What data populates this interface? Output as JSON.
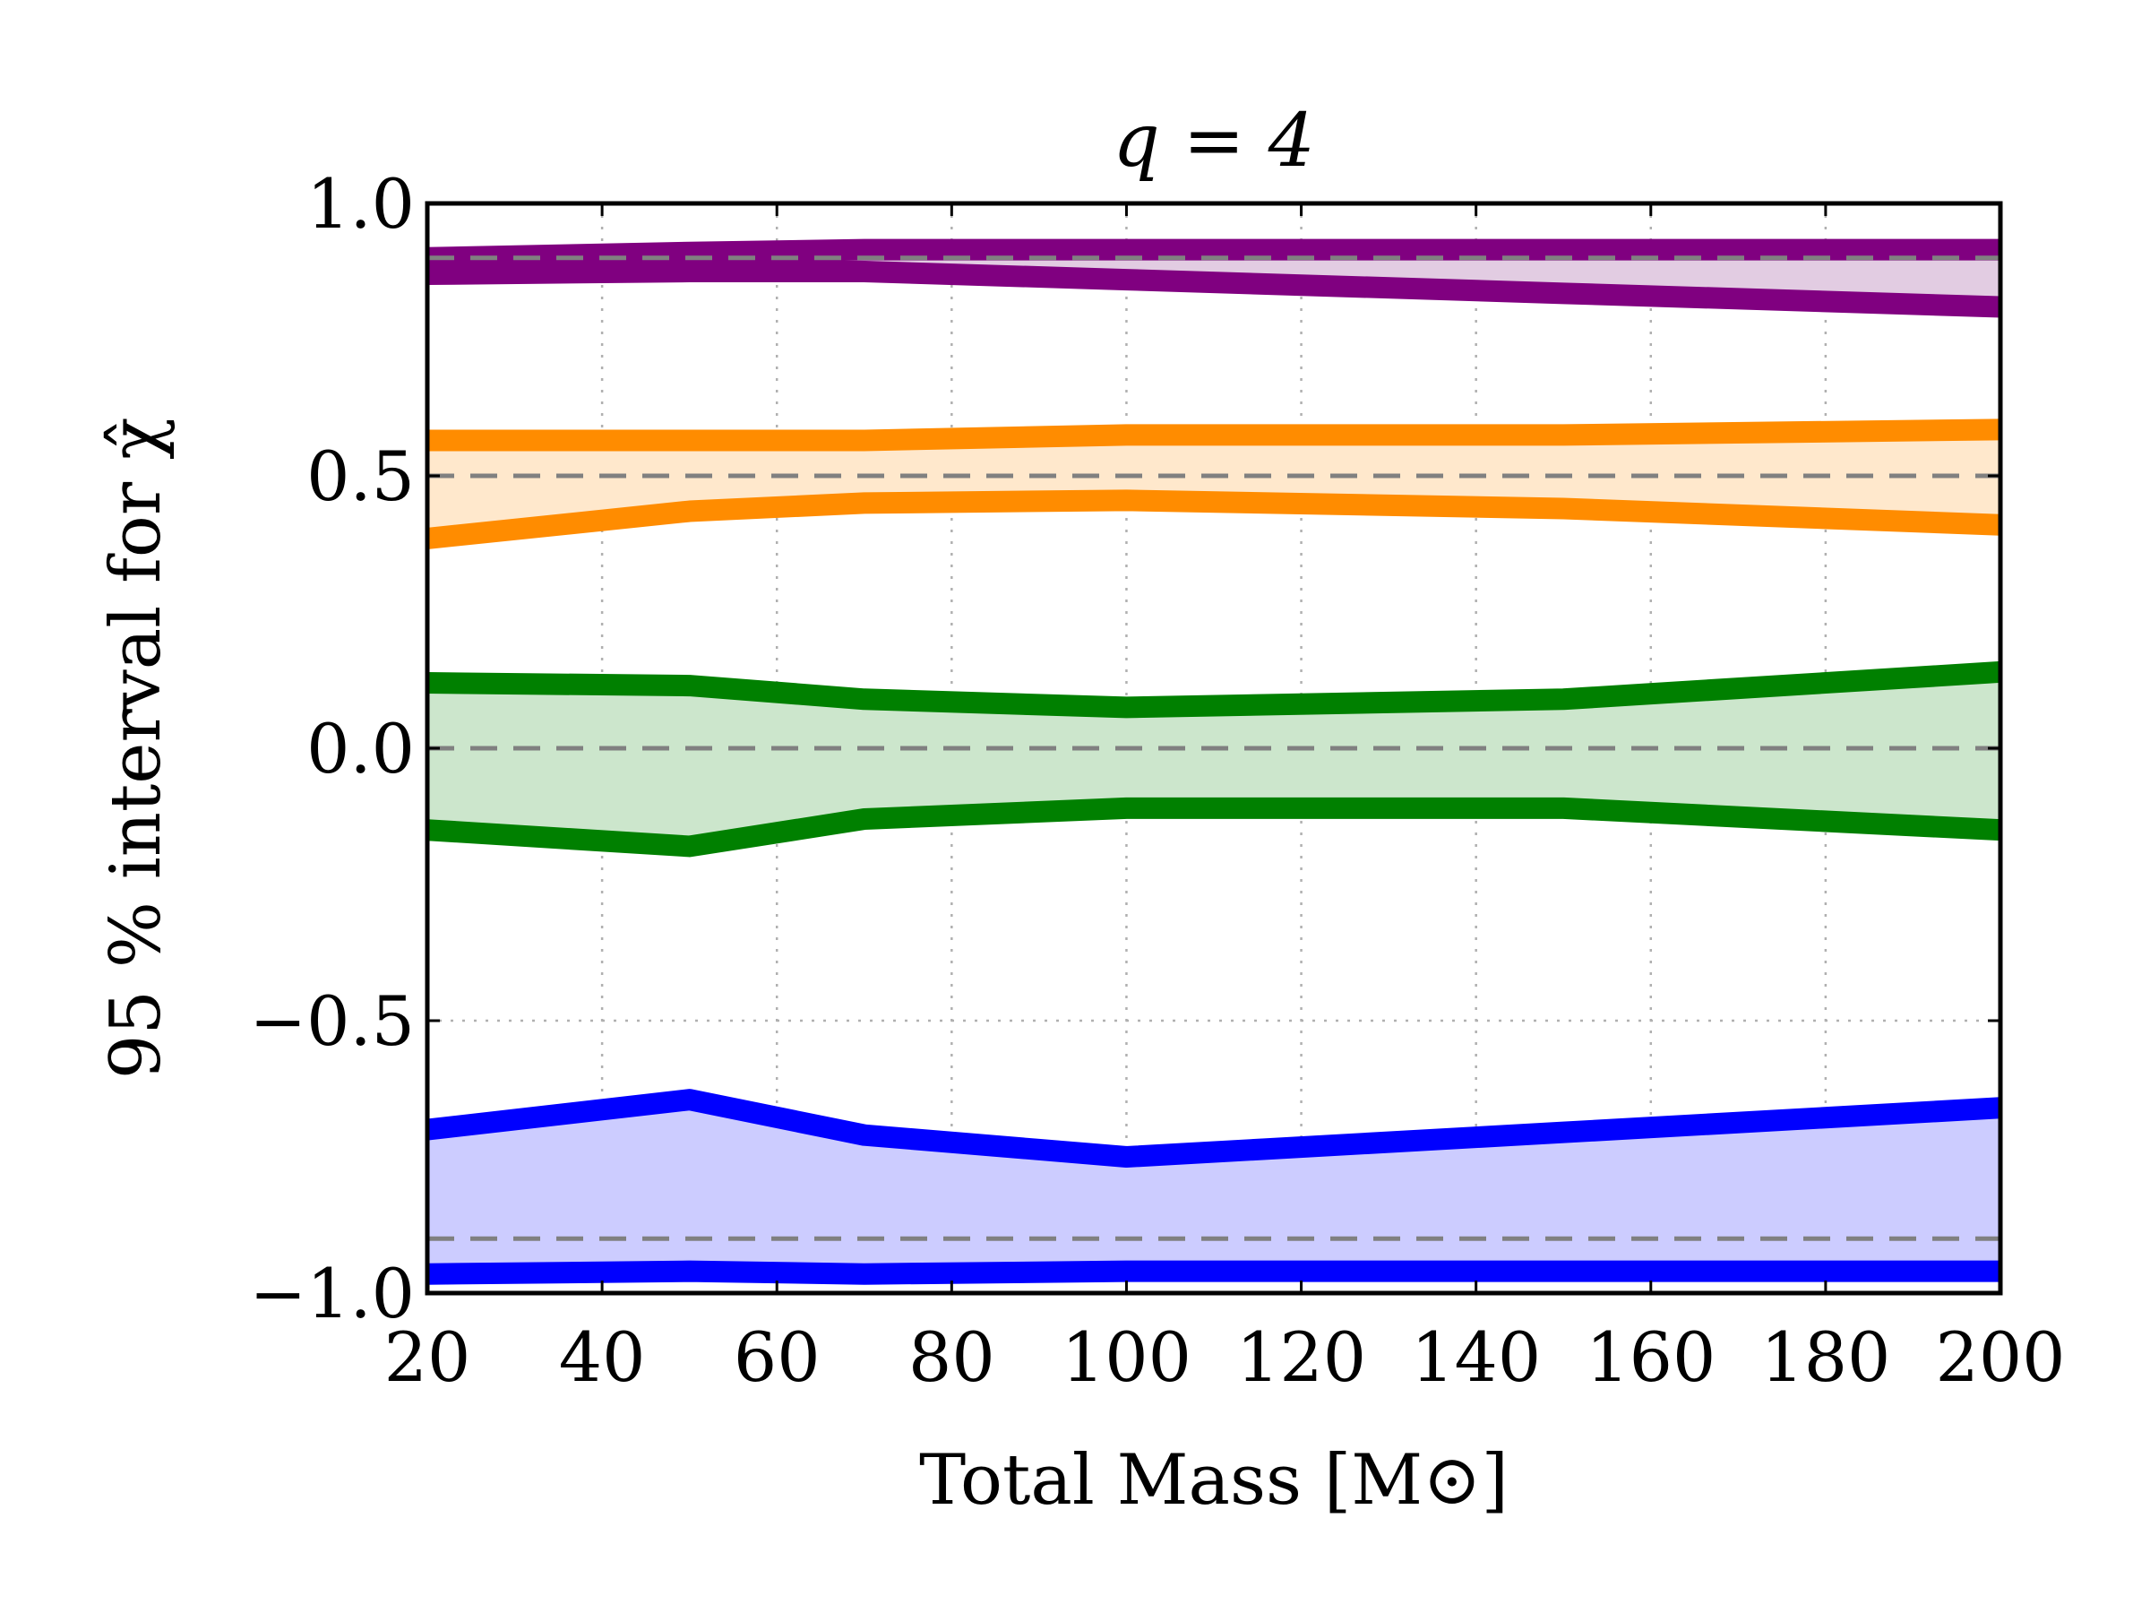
{
  "chart_data": {
    "type": "line",
    "title": "q = 4",
    "xlabel": "Total Mass [M⊙]",
    "ylabel": "95 % interval for χ̂",
    "xlim": [
      20,
      200
    ],
    "ylim": [
      -1.0,
      1.0
    ],
    "xticks": [
      20,
      40,
      60,
      80,
      100,
      120,
      140,
      160,
      180,
      200
    ],
    "xtick_labels": [
      "20",
      "40",
      "60",
      "80",
      "100",
      "120",
      "140",
      "160",
      "180",
      "200"
    ],
    "yticks": [
      -1.0,
      -0.5,
      0.0,
      0.5,
      1.0
    ],
    "ytick_labels": [
      "−1.0",
      "−0.5",
      "0.0",
      "0.5",
      "1.0"
    ],
    "grid": true,
    "x": [
      20,
      50,
      70,
      100,
      150,
      200
    ],
    "series": [
      {
        "color": "#800080",
        "fill": "#e2cce2",
        "truth": 0.9,
        "upper": [
          0.9,
          0.91,
          0.915,
          0.915,
          0.915,
          0.915
        ],
        "lower": [
          0.87,
          0.875,
          0.875,
          0.86,
          0.835,
          0.81
        ]
      },
      {
        "color": "#ff8c00",
        "fill": "#ffe8cc",
        "truth": 0.5,
        "upper": [
          0.565,
          0.565,
          0.565,
          0.575,
          0.575,
          0.585
        ],
        "lower": [
          0.385,
          0.435,
          0.45,
          0.455,
          0.44,
          0.41
        ]
      },
      {
        "color": "#008000",
        "fill": "#cce6cc",
        "truth": 0.0,
        "upper": [
          0.12,
          0.115,
          0.09,
          0.075,
          0.09,
          0.14
        ],
        "lower": [
          -0.15,
          -0.18,
          -0.13,
          -0.11,
          -0.11,
          -0.15
        ]
      },
      {
        "color": "#0000ff",
        "fill": "#ccccff",
        "truth": -0.9,
        "upper": [
          -0.7,
          -0.645,
          -0.71,
          -0.75,
          -0.705,
          -0.66
        ],
        "lower": [
          -0.965,
          -0.96,
          -0.965,
          -0.96,
          -0.96,
          -0.96
        ]
      }
    ]
  }
}
